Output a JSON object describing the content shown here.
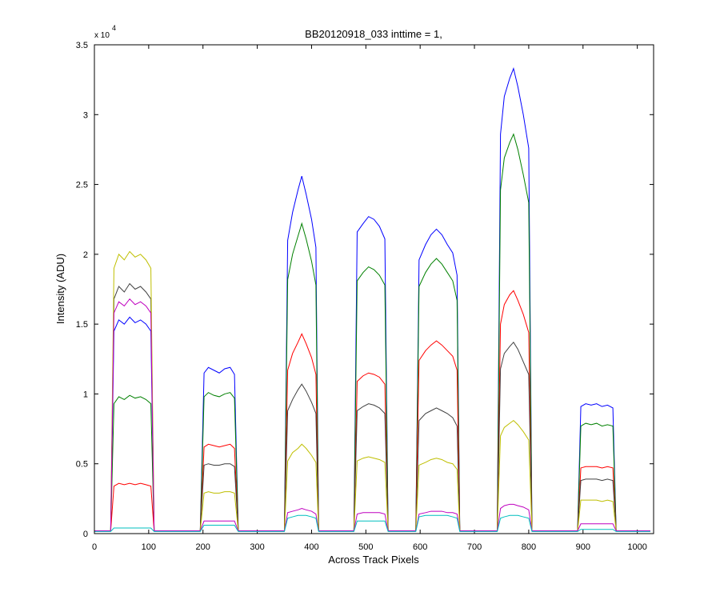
{
  "chart_data": {
    "type": "line",
    "title": "BB20120918_033 inttime = 1,",
    "x_label": "Across Track Pixels",
    "y_label": "Intensity (ADU)",
    "y_exponent": {
      "base": "x 10",
      "power": "4"
    },
    "xlim": [
      0,
      1030
    ],
    "xticks": [
      0,
      100,
      200,
      300,
      400,
      500,
      600,
      700,
      800,
      900,
      1000
    ],
    "ylim": [
      0,
      35000
    ],
    "yticks": [
      0,
      {
        "value": 5000,
        "label": "0.5"
      },
      {
        "value": 10000,
        "label": "1"
      },
      {
        "value": 15000,
        "label": "1.5"
      },
      {
        "value": 20000,
        "label": "2"
      },
      {
        "value": 25000,
        "label": "2.5"
      },
      {
        "value": 30000,
        "label": "3"
      },
      {
        "value": 35000,
        "label": "3.5"
      }
    ],
    "grid": false,
    "x": [
      0,
      30,
      36,
      45,
      55,
      65,
      75,
      85,
      95,
      104,
      110,
      195,
      202,
      210,
      220,
      230,
      240,
      250,
      258,
      265,
      350,
      356,
      365,
      375,
      382,
      390,
      400,
      408,
      413,
      478,
      484,
      495,
      505,
      515,
      525,
      535,
      541,
      592,
      598,
      610,
      620,
      630,
      640,
      650,
      660,
      668,
      673,
      742,
      748,
      755,
      765,
      772,
      780,
      790,
      800,
      806,
      890,
      896,
      905,
      915,
      925,
      935,
      945,
      955,
      961,
      1024
    ],
    "series": [
      {
        "color": "#0000ff",
        "values": [
          200,
          200,
          14500,
          15300,
          15000,
          15500,
          15100,
          15300,
          15000,
          14500,
          200,
          200,
          11500,
          11900,
          11700,
          11500,
          11800,
          11900,
          11400,
          200,
          200,
          21000,
          23000,
          24600,
          25600,
          24300,
          22500,
          20500,
          200,
          200,
          21600,
          22200,
          22700,
          22500,
          22000,
          21100,
          200,
          200,
          19600,
          20700,
          21400,
          21800,
          21400,
          20700,
          20100,
          18500,
          200,
          200,
          28600,
          31300,
          32600,
          33300,
          32000,
          30000,
          27600,
          200,
          200,
          9100,
          9300,
          9200,
          9300,
          9100,
          9200,
          9000,
          200,
          200
        ]
      },
      {
        "color": "#008000",
        "values": [
          200,
          200,
          9300,
          9800,
          9600,
          9900,
          9700,
          9800,
          9600,
          9300,
          200,
          200,
          9800,
          10100,
          9900,
          9800,
          10000,
          10100,
          9700,
          200,
          200,
          18200,
          20000,
          21300,
          22200,
          21100,
          19500,
          17800,
          200,
          200,
          18100,
          18700,
          19100,
          18900,
          18500,
          17800,
          200,
          200,
          17700,
          18700,
          19300,
          19700,
          19300,
          18700,
          18100,
          16700,
          200,
          200,
          24600,
          26900,
          28000,
          28600,
          27500,
          25700,
          23700,
          200,
          200,
          7700,
          7900,
          7800,
          7900,
          7700,
          7800,
          7700,
          200,
          200
        ]
      },
      {
        "color": "#ff0000",
        "values": [
          200,
          200,
          3400,
          3600,
          3500,
          3600,
          3500,
          3600,
          3500,
          3400,
          200,
          200,
          6200,
          6400,
          6300,
          6200,
          6300,
          6400,
          6100,
          200,
          200,
          11700,
          12900,
          13700,
          14300,
          13600,
          12600,
          11400,
          200,
          200,
          10900,
          11300,
          11500,
          11400,
          11200,
          10700,
          200,
          200,
          12400,
          13100,
          13500,
          13800,
          13500,
          13100,
          12700,
          11700,
          200,
          200,
          15000,
          16400,
          17100,
          17400,
          16700,
          15700,
          14400,
          200,
          200,
          4700,
          4800,
          4800,
          4800,
          4700,
          4800,
          4700,
          200,
          200
        ]
      },
      {
        "color": "#404040",
        "values": [
          200,
          200,
          16800,
          17700,
          17300,
          17900,
          17500,
          17700,
          17300,
          16800,
          200,
          200,
          4900,
          5000,
          4900,
          4900,
          5000,
          5000,
          4800,
          200,
          200,
          8800,
          9600,
          10300,
          10700,
          10200,
          9400,
          8600,
          200,
          200,
          8800,
          9100,
          9300,
          9200,
          9000,
          8600,
          200,
          200,
          8100,
          8600,
          8800,
          9000,
          8800,
          8600,
          8300,
          7700,
          200,
          200,
          11800,
          12900,
          13400,
          13700,
          13200,
          12300,
          11400,
          200,
          200,
          3800,
          3900,
          3900,
          3900,
          3800,
          3900,
          3800,
          200,
          200
        ]
      },
      {
        "color": "#bfbf00",
        "values": [
          200,
          200,
          19000,
          20000,
          19600,
          20200,
          19800,
          20000,
          19600,
          19000,
          200,
          200,
          2900,
          3000,
          2900,
          2900,
          3000,
          3000,
          2900,
          200,
          200,
          5200,
          5800,
          6100,
          6400,
          6100,
          5600,
          5100,
          200,
          200,
          5200,
          5400,
          5500,
          5400,
          5300,
          5100,
          200,
          200,
          4900,
          5100,
          5300,
          5400,
          5300,
          5100,
          5000,
          4600,
          200,
          200,
          7000,
          7600,
          7900,
          8100,
          7800,
          7300,
          6700,
          200,
          200,
          2400,
          2400,
          2400,
          2400,
          2300,
          2400,
          2300,
          200,
          200
        ]
      },
      {
        "color": "#bf00bf",
        "values": [
          200,
          200,
          15800,
          16600,
          16300,
          16800,
          16400,
          16600,
          16300,
          15800,
          200,
          200,
          900,
          900,
          900,
          900,
          900,
          900,
          900,
          200,
          200,
          1500,
          1600,
          1700,
          1800,
          1700,
          1600,
          1400,
          200,
          200,
          1400,
          1500,
          1500,
          1500,
          1500,
          1400,
          200,
          200,
          1400,
          1500,
          1600,
          1600,
          1600,
          1500,
          1500,
          1400,
          200,
          200,
          1800,
          2000,
          2100,
          2100,
          2000,
          1900,
          1700,
          200,
          200,
          700,
          700,
          700,
          700,
          700,
          700,
          700,
          200,
          200
        ]
      },
      {
        "color": "#00bfbf",
        "values": [
          150,
          150,
          400,
          400,
          400,
          400,
          400,
          400,
          400,
          400,
          150,
          150,
          600,
          600,
          600,
          600,
          600,
          600,
          600,
          150,
          150,
          1100,
          1200,
          1300,
          1300,
          1300,
          1200,
          1100,
          150,
          150,
          900,
          900,
          900,
          900,
          900,
          900,
          150,
          150,
          1200,
          1300,
          1300,
          1300,
          1300,
          1300,
          1200,
          1100,
          150,
          150,
          1100,
          1200,
          1300,
          1300,
          1300,
          1200,
          1100,
          150,
          150,
          300,
          300,
          300,
          300,
          300,
          300,
          300,
          150,
          150
        ]
      }
    ]
  }
}
